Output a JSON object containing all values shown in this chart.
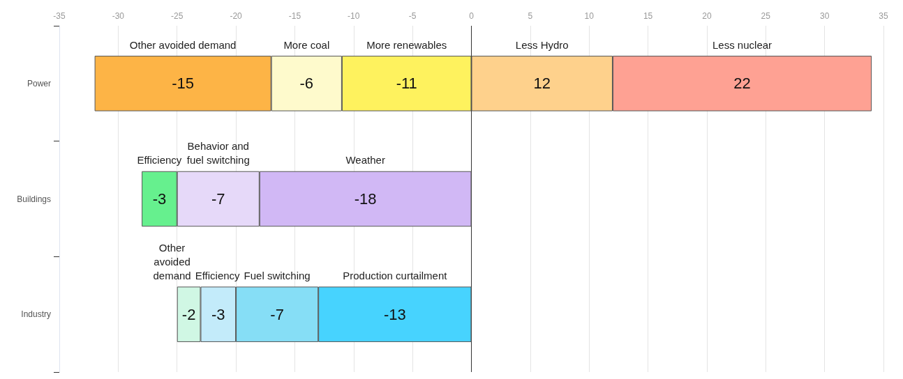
{
  "chart_data": {
    "type": "bar",
    "orientation": "horizontal",
    "stacked": true,
    "data_labels": true,
    "grid": "x",
    "legend": false,
    "categories": [
      "Power",
      "Buildings",
      "Industry"
    ],
    "xlim": [
      -35,
      35
    ],
    "xticks": [
      -35,
      -30,
      -25,
      -20,
      -15,
      -10,
      -5,
      0,
      5,
      10,
      15,
      20,
      25,
      30,
      35
    ],
    "series": [
      {
        "name": "More renewables",
        "color": "#fef25e",
        "values": [
          -11,
          null,
          null
        ]
      },
      {
        "name": "More coal",
        "color": "#fefacc",
        "values": [
          -6,
          null,
          null
        ]
      },
      {
        "name": "Other avoided demand",
        "color": "#fdb446",
        "values": [
          -15,
          null,
          null
        ]
      },
      {
        "name": "Less Hydro",
        "color": "#fed18c",
        "values": [
          12,
          null,
          null
        ]
      },
      {
        "name": "Less nuclear",
        "color": "#fea193",
        "values": [
          22,
          null,
          null
        ]
      },
      {
        "name": "Weather",
        "color": "#d1b8f5",
        "values": [
          null,
          -18,
          null
        ]
      },
      {
        "name": "Behavior and fuel switching",
        "color": "#e6d9f9",
        "values": [
          null,
          -7,
          null
        ]
      },
      {
        "name": "Efficiency",
        "color": "#66f08e",
        "values": [
          null,
          -3,
          null
        ]
      },
      {
        "name": "Production curtailment",
        "color": "#47d3fe",
        "values": [
          null,
          null,
          -13
        ]
      },
      {
        "name": "Fuel switching",
        "color": "#86def6",
        "values": [
          null,
          null,
          -7
        ]
      },
      {
        "name": "Efficiency",
        "color": "#c3ebfa",
        "values": [
          null,
          null,
          -3
        ]
      },
      {
        "name": "Other avoided demand",
        "color": "#d0f7e4",
        "values": [
          null,
          null,
          -2
        ]
      }
    ]
  }
}
